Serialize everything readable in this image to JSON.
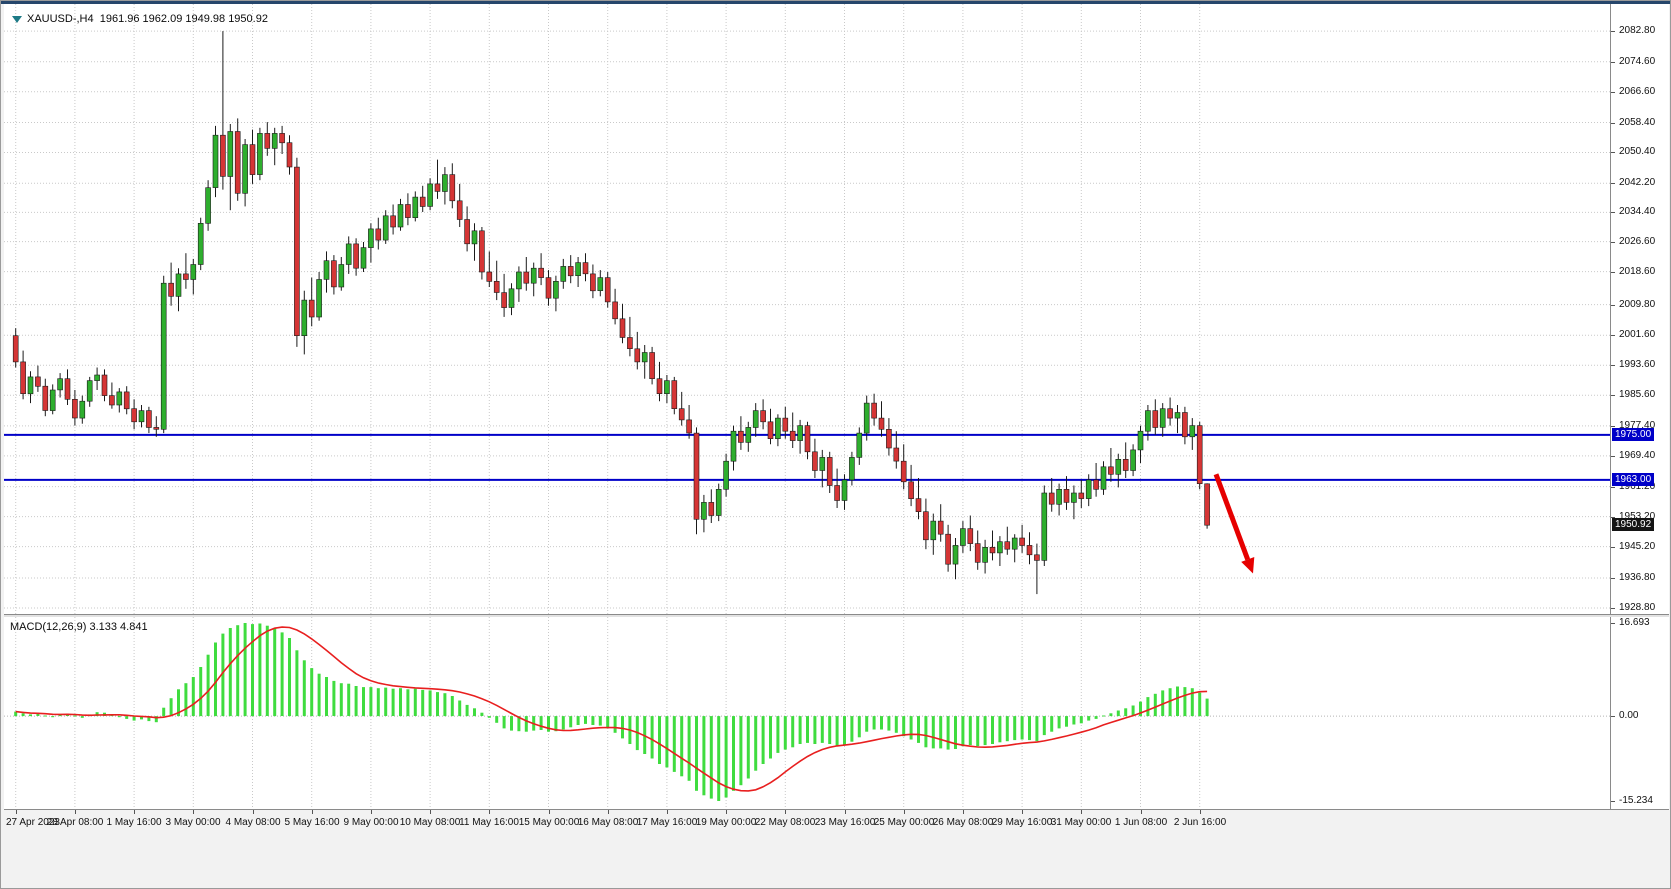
{
  "colors": {
    "background": "#f2f2f2",
    "chart_bg": "#ffffff",
    "grid": "#c9c9c9",
    "bull": "#2eae2e",
    "bear": "#d53535",
    "candle_outline": "#1a1a1a",
    "wick": "#1a1a1a",
    "hline": "#0000c8",
    "hline_tag_bg": "#0000c8",
    "current_tag_bg": "#141414",
    "macd_hist": "#3fdc3f",
    "macd_signal": "#e81f1f",
    "arrow": "#e60000",
    "axis_text": "#101010"
  },
  "quote_bar": {
    "symbol": "XAUUSD-",
    "timeframe": "H4",
    "open": "1961.96",
    "high": "1962.09",
    "low": "1949.98",
    "close": "1950.92",
    "text": "XAUUSD-,H4  1961.96 1962.09 1949.98 1950.92"
  },
  "chart_data": [
    {
      "type": "candlestick",
      "symbol": "XAUUSD",
      "timeframe": "H4",
      "ylim": [
        1928.0,
        2088.7
      ],
      "price_ticks": [
        "2082.80",
        "2074.60",
        "2066.60",
        "2058.40",
        "2050.40",
        "2042.20",
        "2034.40",
        "2026.60",
        "2018.60",
        "2009.80",
        "2001.60",
        "1993.60",
        "1985.60",
        "1977.40",
        "1969.40",
        "1961.20",
        "1953.20",
        "1945.20",
        "1936.80",
        "1928.80"
      ],
      "x_tick_labels": [
        "27 Apr 2023",
        "28 Apr 08:00",
        "1 May 16:00",
        "3 May 00:00",
        "4 May 08:00",
        "5 May 16:00",
        "9 May 00:00",
        "10 May 08:00",
        "11 May 16:00",
        "15 May 00:00",
        "16 May 08:00",
        "17 May 16:00",
        "19 May 00:00",
        "22 May 08:00",
        "23 May 16:00",
        "25 May 00:00",
        "26 May 08:00",
        "29 May 16:00",
        "31 May 00:00",
        "1 Jun 08:00",
        "2 Jun 16:00"
      ],
      "bars_per_x_tick": 8,
      "hlines": [
        {
          "price": 1975.0,
          "label": "1975.00"
        },
        {
          "price": 1963.0,
          "label": "1963.00"
        }
      ],
      "current_price": {
        "price": 1950.92,
        "label": "1950.92"
      },
      "arrow": {
        "from_bar": 162.2,
        "from_price": 1964.5,
        "to_bar": 167.2,
        "to_price": 1938.0
      },
      "ohlc": [
        [
          2001.5,
          2003.5,
          1993.0,
          1994.5
        ],
        [
          1994.5,
          1997.5,
          1984.5,
          1986.0
        ],
        [
          1986.0,
          1992.0,
          1983.5,
          1990.5
        ],
        [
          1990.5,
          1993.5,
          1986.5,
          1988.0
        ],
        [
          1988.0,
          1990.0,
          1980.0,
          1981.5
        ],
        [
          1981.5,
          1988.5,
          1980.5,
          1987.0
        ],
        [
          1987.0,
          1991.5,
          1985.0,
          1990.0
        ],
        [
          1990.0,
          1992.5,
          1983.0,
          1984.5
        ],
        [
          1984.5,
          1987.0,
          1977.5,
          1979.5
        ],
        [
          1979.5,
          1985.5,
          1978.0,
          1984.0
        ],
        [
          1984.0,
          1990.5,
          1982.5,
          1989.5
        ],
        [
          1989.5,
          1993.0,
          1987.0,
          1991.0
        ],
        [
          1991.0,
          1992.5,
          1984.0,
          1985.5
        ],
        [
          1985.5,
          1989.0,
          1982.0,
          1983.0
        ],
        [
          1983.0,
          1987.5,
          1981.0,
          1986.5
        ],
        [
          1986.5,
          1988.0,
          1980.5,
          1982.0
        ],
        [
          1982.0,
          1984.5,
          1976.5,
          1978.5
        ],
        [
          1978.5,
          1983.0,
          1977.0,
          1981.5
        ],
        [
          1981.5,
          1982.5,
          1975.5,
          1977.0
        ],
        [
          1977.0,
          1980.0,
          1974.5,
          1976.5
        ],
        [
          1976.5,
          2017.5,
          1975.5,
          2015.5
        ],
        [
          2015.5,
          2021.0,
          2009.5,
          2012.0
        ],
        [
          2012.0,
          2019.5,
          2008.0,
          2018.0
        ],
        [
          2018.0,
          2023.5,
          2014.0,
          2016.5
        ],
        [
          2016.5,
          2022.0,
          2012.5,
          2020.5
        ],
        [
          2020.5,
          2033.0,
          2019.0,
          2031.5
        ],
        [
          2031.5,
          2043.0,
          2029.5,
          2041.0
        ],
        [
          2041.0,
          2057.5,
          2038.5,
          2055.0
        ],
        [
          2055.0,
          2082.8,
          2040.5,
          2044.0
        ],
        [
          2044.0,
          2058.0,
          2035.0,
          2056.0
        ],
        [
          2056.0,
          2059.5,
          2037.5,
          2039.5
        ],
        [
          2039.5,
          2054.0,
          2036.0,
          2052.5
        ],
        [
          2052.5,
          2056.5,
          2042.0,
          2044.5
        ],
        [
          2044.5,
          2057.0,
          2043.0,
          2055.5
        ],
        [
          2055.5,
          2058.5,
          2049.5,
          2051.5
        ],
        [
          2051.5,
          2057.0,
          2047.0,
          2055.5
        ],
        [
          2055.5,
          2057.5,
          2050.0,
          2053.0
        ],
        [
          2053.0,
          2055.0,
          2044.5,
          2046.5
        ],
        [
          2046.5,
          2049.0,
          1998.5,
          2001.5
        ],
        [
          2001.5,
          2013.5,
          1996.5,
          2011.0
        ],
        [
          2011.0,
          2017.0,
          2004.0,
          2006.5
        ],
        [
          2006.5,
          2018.5,
          2005.5,
          2016.5
        ],
        [
          2016.5,
          2024.0,
          2013.0,
          2021.5
        ],
        [
          2021.5,
          2023.0,
          2012.5,
          2014.5
        ],
        [
          2014.5,
          2022.5,
          2013.5,
          2020.5
        ],
        [
          2020.5,
          2028.0,
          2018.0,
          2026.0
        ],
        [
          2026.0,
          2027.5,
          2017.5,
          2019.5
        ],
        [
          2019.5,
          2026.5,
          2018.5,
          2025.0
        ],
        [
          2025.0,
          2031.5,
          2021.0,
          2030.0
        ],
        [
          2030.0,
          2033.0,
          2024.5,
          2027.0
        ],
        [
          2027.0,
          2035.0,
          2026.0,
          2033.5
        ],
        [
          2033.5,
          2036.5,
          2028.5,
          2030.5
        ],
        [
          2030.5,
          2038.0,
          2029.5,
          2036.5
        ],
        [
          2036.5,
          2039.5,
          2031.0,
          2033.0
        ],
        [
          2033.0,
          2040.0,
          2032.0,
          2038.5
        ],
        [
          2038.5,
          2041.5,
          2034.5,
          2036.0
        ],
        [
          2036.0,
          2043.5,
          2035.0,
          2042.0
        ],
        [
          2042.0,
          2048.5,
          2038.0,
          2040.0
        ],
        [
          2040.0,
          2046.5,
          2036.5,
          2044.5
        ],
        [
          2044.5,
          2047.5,
          2035.5,
          2037.5
        ],
        [
          2037.5,
          2042.0,
          2030.5,
          2032.5
        ],
        [
          2032.5,
          2036.0,
          2024.0,
          2026.0
        ],
        [
          2026.0,
          2031.5,
          2021.5,
          2029.5
        ],
        [
          2029.5,
          2030.5,
          2016.5,
          2018.5
        ],
        [
          2018.5,
          2024.0,
          2014.5,
          2016.0
        ],
        [
          2016.0,
          2021.5,
          2011.0,
          2013.0
        ],
        [
          2013.0,
          2018.0,
          2006.5,
          2009.0
        ],
        [
          2009.0,
          2015.5,
          2007.0,
          2014.0
        ],
        [
          2014.0,
          2020.0,
          2010.5,
          2018.5
        ],
        [
          2018.5,
          2022.5,
          2013.5,
          2015.5
        ],
        [
          2015.5,
          2021.0,
          2012.0,
          2019.5
        ],
        [
          2019.5,
          2023.5,
          2015.0,
          2017.0
        ],
        [
          2017.0,
          2019.0,
          2009.5,
          2011.5
        ],
        [
          2011.5,
          2017.5,
          2008.0,
          2016.0
        ],
        [
          2016.0,
          2022.0,
          2014.0,
          2020.0
        ],
        [
          2020.0,
          2023.0,
          2015.5,
          2017.5
        ],
        [
          2017.5,
          2022.5,
          2014.5,
          2021.0
        ],
        [
          2021.0,
          2023.5,
          2016.0,
          2018.0
        ],
        [
          2018.0,
          2020.5,
          2011.5,
          2013.5
        ],
        [
          2013.5,
          2019.0,
          2012.0,
          2017.0
        ],
        [
          2017.0,
          2018.5,
          2009.0,
          2010.5
        ],
        [
          2010.5,
          2014.0,
          2004.5,
          2006.0
        ],
        [
          2006.0,
          2010.0,
          1999.5,
          2001.0
        ],
        [
          2001.0,
          2006.5,
          1996.0,
          1998.0
        ],
        [
          1998.0,
          2002.5,
          1992.5,
          1994.5
        ],
        [
          1994.5,
          1999.0,
          1990.0,
          1997.0
        ],
        [
          1997.0,
          1998.5,
          1988.5,
          1990.0
        ],
        [
          1990.0,
          1994.5,
          1984.0,
          1986.0
        ],
        [
          1986.0,
          1991.0,
          1983.5,
          1989.5
        ],
        [
          1989.5,
          1990.5,
          1980.5,
          1982.0
        ],
        [
          1982.0,
          1986.5,
          1977.5,
          1979.0
        ],
        [
          1979.0,
          1983.0,
          1974.0,
          1975.5
        ],
        [
          1975.5,
          1977.0,
          1948.5,
          1952.5
        ],
        [
          1952.5,
          1959.0,
          1949.0,
          1957.0
        ],
        [
          1957.0,
          1960.5,
          1951.5,
          1953.5
        ],
        [
          1953.5,
          1962.0,
          1952.0,
          1960.5
        ],
        [
          1960.5,
          1970.0,
          1958.5,
          1968.0
        ],
        [
          1968.0,
          1977.5,
          1965.5,
          1976.0
        ],
        [
          1976.0,
          1980.0,
          1971.0,
          1973.0
        ],
        [
          1973.0,
          1978.5,
          1970.5,
          1977.0
        ],
        [
          1977.0,
          1983.5,
          1974.5,
          1981.5
        ],
        [
          1981.5,
          1984.5,
          1976.5,
          1978.5
        ],
        [
          1978.5,
          1982.0,
          1972.5,
          1974.0
        ],
        [
          1974.0,
          1980.5,
          1972.0,
          1979.5
        ],
        [
          1979.5,
          1982.5,
          1974.0,
          1976.0
        ],
        [
          1976.0,
          1981.0,
          1971.5,
          1973.5
        ],
        [
          1973.5,
          1979.0,
          1970.0,
          1977.5
        ],
        [
          1977.5,
          1978.5,
          1968.5,
          1970.5
        ],
        [
          1970.5,
          1974.0,
          1963.5,
          1965.5
        ],
        [
          1965.5,
          1971.0,
          1961.0,
          1969.0
        ],
        [
          1969.0,
          1970.5,
          1959.5,
          1961.5
        ],
        [
          1961.5,
          1966.0,
          1955.5,
          1957.5
        ],
        [
          1957.5,
          1964.5,
          1955.0,
          1963.0
        ],
        [
          1963.0,
          1970.5,
          1961.5,
          1969.0
        ],
        [
          1969.0,
          1977.0,
          1967.0,
          1975.5
        ],
        [
          1975.5,
          1985.5,
          1973.5,
          1983.5
        ],
        [
          1983.5,
          1986.0,
          1977.5,
          1979.5
        ],
        [
          1979.5,
          1984.0,
          1974.5,
          1976.5
        ],
        [
          1976.5,
          1979.5,
          1969.5,
          1971.5
        ],
        [
          1971.5,
          1976.0,
          1966.0,
          1968.0
        ],
        [
          1968.0,
          1972.5,
          1960.5,
          1962.5
        ],
        [
          1962.5,
          1967.0,
          1956.0,
          1958.0
        ],
        [
          1958.0,
          1963.5,
          1952.5,
          1954.5
        ],
        [
          1954.5,
          1958.0,
          1944.5,
          1947.0
        ],
        [
          1947.0,
          1954.0,
          1943.0,
          1952.0
        ],
        [
          1952.0,
          1956.5,
          1946.5,
          1948.5
        ],
        [
          1948.5,
          1951.0,
          1938.5,
          1940.5
        ],
        [
          1940.5,
          1947.5,
          1936.5,
          1945.5
        ],
        [
          1945.5,
          1952.0,
          1943.5,
          1950.0
        ],
        [
          1950.0,
          1953.5,
          1944.0,
          1946.0
        ],
        [
          1946.0,
          1949.5,
          1939.0,
          1941.0
        ],
        [
          1941.0,
          1947.0,
          1938.0,
          1945.0
        ],
        [
          1945.0,
          1949.5,
          1941.5,
          1943.5
        ],
        [
          1943.5,
          1948.0,
          1940.0,
          1946.5
        ],
        [
          1946.5,
          1950.5,
          1943.0,
          1944.5
        ],
        [
          1944.5,
          1948.5,
          1941.0,
          1947.5
        ],
        [
          1947.5,
          1951.0,
          1943.5,
          1945.5
        ],
        [
          1945.5,
          1949.0,
          1940.5,
          1943.0
        ],
        [
          1943.0,
          1946.0,
          1932.5,
          1941.5
        ],
        [
          1941.5,
          1961.5,
          1940.0,
          1959.5
        ],
        [
          1959.5,
          1963.5,
          1954.5,
          1956.5
        ],
        [
          1956.5,
          1962.0,
          1953.5,
          1960.5
        ],
        [
          1960.5,
          1964.0,
          1955.0,
          1957.0
        ],
        [
          1957.0,
          1961.5,
          1952.5,
          1959.5
        ],
        [
          1959.5,
          1963.0,
          1955.5,
          1958.0
        ],
        [
          1958.0,
          1964.5,
          1956.0,
          1963.0
        ],
        [
          1963.0,
          1967.5,
          1958.5,
          1960.5
        ],
        [
          1960.5,
          1968.0,
          1959.0,
          1966.5
        ],
        [
          1966.5,
          1971.5,
          1962.5,
          1964.5
        ],
        [
          1964.5,
          1970.0,
          1961.0,
          1968.5
        ],
        [
          1968.5,
          1973.0,
          1963.5,
          1965.5
        ],
        [
          1965.5,
          1972.5,
          1964.0,
          1971.0
        ],
        [
          1971.0,
          1977.5,
          1967.5,
          1976.0
        ],
        [
          1976.0,
          1983.0,
          1973.5,
          1981.5
        ],
        [
          1981.5,
          1984.5,
          1975.0,
          1977.0
        ],
        [
          1977.0,
          1983.5,
          1974.5,
          1982.0
        ],
        [
          1982.0,
          1985.0,
          1977.5,
          1979.5
        ],
        [
          1979.5,
          1983.0,
          1975.5,
          1981.0
        ],
        [
          1981.0,
          1982.5,
          1972.5,
          1974.5
        ],
        [
          1974.5,
          1979.5,
          1971.0,
          1977.5
        ],
        [
          1977.5,
          1978.5,
          1960.5,
          1962.0
        ],
        [
          1961.96,
          1962.09,
          1949.98,
          1950.92
        ]
      ]
    },
    {
      "type": "bar",
      "name": "MACD(12,26,9)",
      "label_text": "MACD(12,26,9) 3.133 4.841",
      "macd_value": 3.133,
      "signal_value": 4.841,
      "signal_period": 9,
      "ylim": [
        -15.234,
        16.693
      ],
      "axis_ticks": [
        {
          "label": "16.693",
          "value": 16.693
        },
        {
          "label": "0.00",
          "value": 0
        },
        {
          "label": "-15.234",
          "value": -15.234
        }
      ],
      "histogram": [
        0.8,
        0.5,
        0.3,
        0.4,
        0.1,
        -0.2,
        0.2,
        0.4,
        0.1,
        -0.3,
        0.3,
        0.7,
        0.6,
        0.2,
        -0.2,
        -0.5,
        -0.8,
        -0.6,
        -0.9,
        -1.1,
        1.5,
        3.2,
        4.8,
        5.9,
        7.0,
        8.8,
        11.0,
        13.2,
        14.8,
        15.8,
        16.3,
        16.693,
        16.5,
        16.6,
        16.2,
        15.8,
        15.0,
        14.0,
        11.8,
        10.0,
        8.6,
        7.6,
        7.0,
        6.3,
        5.9,
        5.8,
        5.4,
        5.2,
        5.2,
        5.0,
        5.1,
        4.9,
        5.0,
        4.8,
        4.9,
        4.7,
        4.6,
        4.3,
        4.1,
        3.6,
        2.8,
        2.0,
        1.4,
        0.6,
        -0.3,
        -1.2,
        -2.2,
        -2.6,
        -2.7,
        -2.8,
        -2.6,
        -2.5,
        -2.8,
        -2.7,
        -2.4,
        -2.0,
        -1.6,
        -1.4,
        -1.6,
        -1.7,
        -2.2,
        -3.0,
        -4.0,
        -5.0,
        -6.1,
        -6.8,
        -7.6,
        -8.6,
        -9.2,
        -10.0,
        -10.8,
        -11.6,
        -13.4,
        -14.2,
        -14.8,
        -15.234,
        -14.6,
        -13.4,
        -12.4,
        -11.2,
        -9.8,
        -8.6,
        -7.6,
        -6.6,
        -6.0,
        -5.6,
        -5.0,
        -4.8,
        -5.0,
        -4.8,
        -5.0,
        -5.4,
        -5.2,
        -4.6,
        -3.8,
        -2.8,
        -2.4,
        -2.4,
        -2.6,
        -3.0,
        -3.6,
        -4.2,
        -4.8,
        -5.6,
        -5.8,
        -5.8,
        -6.0,
        -5.9,
        -5.4,
        -5.2,
        -5.4,
        -5.2,
        -5.0,
        -4.7,
        -4.5,
        -4.3,
        -4.2,
        -4.3,
        -4.5,
        -3.4,
        -2.8,
        -2.2,
        -1.9,
        -1.5,
        -1.3,
        -0.8,
        -0.5,
        0.1,
        0.5,
        1.0,
        1.4,
        1.9,
        2.6,
        3.4,
        4.0,
        4.6,
        5.0,
        5.3,
        5.2,
        5.0,
        4.2,
        3.133
      ]
    }
  ]
}
